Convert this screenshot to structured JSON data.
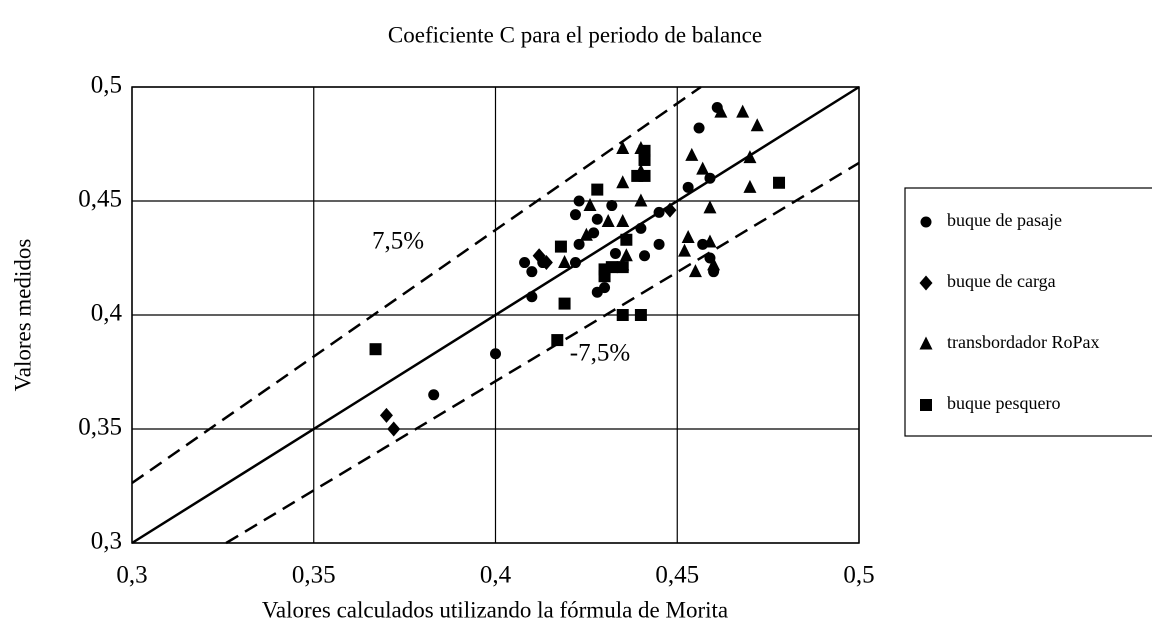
{
  "chart_data": {
    "type": "scatter",
    "title": "Coeficiente C para el periodo de balance",
    "xlabel": "Valores calculados utilizando la fórmula de Morita",
    "ylabel": "Valores medidos",
    "xlim": [
      0.3,
      0.5
    ],
    "ylim": [
      0.3,
      0.5
    ],
    "xticks": [
      {
        "value": 0.3,
        "label": "0,3"
      },
      {
        "value": 0.35,
        "label": "0,35"
      },
      {
        "value": 0.4,
        "label": "0,4"
      },
      {
        "value": 0.45,
        "label": "0,45"
      },
      {
        "value": 0.5,
        "label": "0,5"
      }
    ],
    "yticks": [
      {
        "value": 0.3,
        "label": "0,3"
      },
      {
        "value": 0.35,
        "label": "0,35"
      },
      {
        "value": 0.4,
        "label": "0,4"
      },
      {
        "value": 0.45,
        "label": "0,45"
      },
      {
        "value": 0.5,
        "label": "0,5"
      }
    ],
    "grid": true,
    "legend": "right",
    "reference_lines": [
      {
        "style": "solid",
        "x": [
          0.3,
          0.5
        ],
        "y": [
          0.3,
          0.5
        ]
      },
      {
        "style": "dashed",
        "x": [
          0.3,
          0.4565
        ],
        "y": [
          0.3263,
          0.5
        ]
      },
      {
        "style": "dashed",
        "x": [
          0.3259,
          0.5
        ],
        "y": [
          0.3,
          0.4667
        ]
      }
    ],
    "annotations": [
      "7,5%",
      "-7,5%"
    ],
    "series": [
      {
        "name": "buque de pasaje",
        "marker": "circle",
        "color": "#000000",
        "x": [
          0.461,
          0.456,
          0.459,
          0.453,
          0.445,
          0.423,
          0.422,
          0.423,
          0.422,
          0.432,
          0.428,
          0.427,
          0.408,
          0.41,
          0.41,
          0.413,
          0.428,
          0.43,
          0.433,
          0.441,
          0.445,
          0.457,
          0.459,
          0.46,
          0.4,
          0.383,
          0.44
        ],
        "values": [
          0.491,
          0.482,
          0.46,
          0.456,
          0.445,
          0.45,
          0.444,
          0.431,
          0.423,
          0.448,
          0.442,
          0.436,
          0.423,
          0.419,
          0.408,
          0.423,
          0.41,
          0.412,
          0.427,
          0.426,
          0.431,
          0.431,
          0.425,
          0.419,
          0.383,
          0.365,
          0.438
        ]
      },
      {
        "name": "buque de carga",
        "marker": "diamond",
        "color": "#000000",
        "x": [
          0.37,
          0.372,
          0.412,
          0.414,
          0.448
        ],
        "values": [
          0.356,
          0.35,
          0.426,
          0.423,
          0.446
        ]
      },
      {
        "name": "transbordador RoPax",
        "marker": "triangle",
        "color": "#000000",
        "x": [
          0.462,
          0.468,
          0.472,
          0.47,
          0.454,
          0.457,
          0.47,
          0.459,
          0.459,
          0.46,
          0.453,
          0.452,
          0.455,
          0.435,
          0.44,
          0.44,
          0.435,
          0.44,
          0.431,
          0.435,
          0.436,
          0.435,
          0.425,
          0.419,
          0.426
        ],
        "values": [
          0.489,
          0.489,
          0.483,
          0.469,
          0.47,
          0.464,
          0.456,
          0.447,
          0.432,
          0.422,
          0.434,
          0.428,
          0.419,
          0.473,
          0.473,
          0.463,
          0.458,
          0.45,
          0.441,
          0.441,
          0.426,
          0.422,
          0.435,
          0.423,
          0.448
        ]
      },
      {
        "name": "buque pesquero",
        "marker": "square",
        "color": "#000000",
        "x": [
          0.367,
          0.418,
          0.419,
          0.428,
          0.436,
          0.43,
          0.432,
          0.435,
          0.43,
          0.435,
          0.44,
          0.439,
          0.441,
          0.441,
          0.441,
          0.417,
          0.478
        ],
        "values": [
          0.385,
          0.43,
          0.405,
          0.455,
          0.433,
          0.42,
          0.421,
          0.421,
          0.417,
          0.4,
          0.4,
          0.461,
          0.461,
          0.468,
          0.472,
          0.389,
          0.458
        ]
      }
    ]
  }
}
